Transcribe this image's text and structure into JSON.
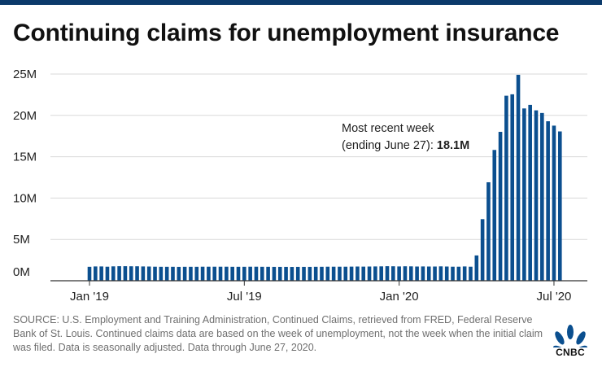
{
  "title": "Continuing claims for unemployment insurance",
  "annotation": {
    "line1": "Most recent week",
    "line2_prefix": "(ending June 27): ",
    "line2_value": "18.1M"
  },
  "source": "SOURCE: U.S. Employment and Training Administration, Continued Claims, retrieved from FRED, Federal Reserve Bank of St. Louis. Continued claims data are based on the week of unemployment, not the week when the initial claim was filed. Data is seasonally adjusted. Data through June 27, 2020.",
  "logo": {
    "text": "CNBC",
    "icon": "cnbc-peacock-icon"
  },
  "colors": {
    "bar": "#0b4f8f",
    "grid": "#d9d9d9",
    "axis": "#333333",
    "top_bar": "#0b3a6b"
  },
  "chart_data": {
    "type": "bar",
    "title": "Continuing claims for unemployment insurance",
    "xlabel": "",
    "ylabel": "",
    "unit": "millions",
    "ylim": [
      0,
      25
    ],
    "yticks": [
      0,
      5,
      10,
      15,
      20,
      25
    ],
    "ytick_labels": [
      "0M",
      "5M",
      "10M",
      "15M",
      "20M",
      "25M"
    ],
    "xtick_labels": [
      "Jan '19",
      "Jul '19",
      "Jan '20",
      "Jul '20"
    ],
    "xtick_positions": [
      0,
      26,
      52,
      78
    ],
    "grid": true,
    "legend": "none",
    "x_start_week_index": 0,
    "values": [
      1.69,
      1.73,
      1.73,
      1.7,
      1.74,
      1.76,
      1.76,
      1.75,
      1.75,
      1.73,
      1.72,
      1.7,
      1.69,
      1.69,
      1.69,
      1.68,
      1.69,
      1.69,
      1.69,
      1.7,
      1.7,
      1.7,
      1.7,
      1.7,
      1.69,
      1.69,
      1.69,
      1.7,
      1.7,
      1.69,
      1.69,
      1.68,
      1.68,
      1.68,
      1.67,
      1.68,
      1.68,
      1.68,
      1.69,
      1.69,
      1.7,
      1.7,
      1.7,
      1.7,
      1.71,
      1.72,
      1.71,
      1.72,
      1.73,
      1.74,
      1.76,
      1.75,
      1.73,
      1.75,
      1.74,
      1.72,
      1.73,
      1.72,
      1.72,
      1.74,
      1.72,
      1.7,
      1.7,
      1.73,
      1.7,
      3.06,
      7.45,
      11.91,
      15.82,
      18.01,
      22.38,
      22.55,
      24.91,
      20.84,
      21.27,
      20.61,
      20.29,
      19.29,
      18.76,
      18.06
    ]
  }
}
